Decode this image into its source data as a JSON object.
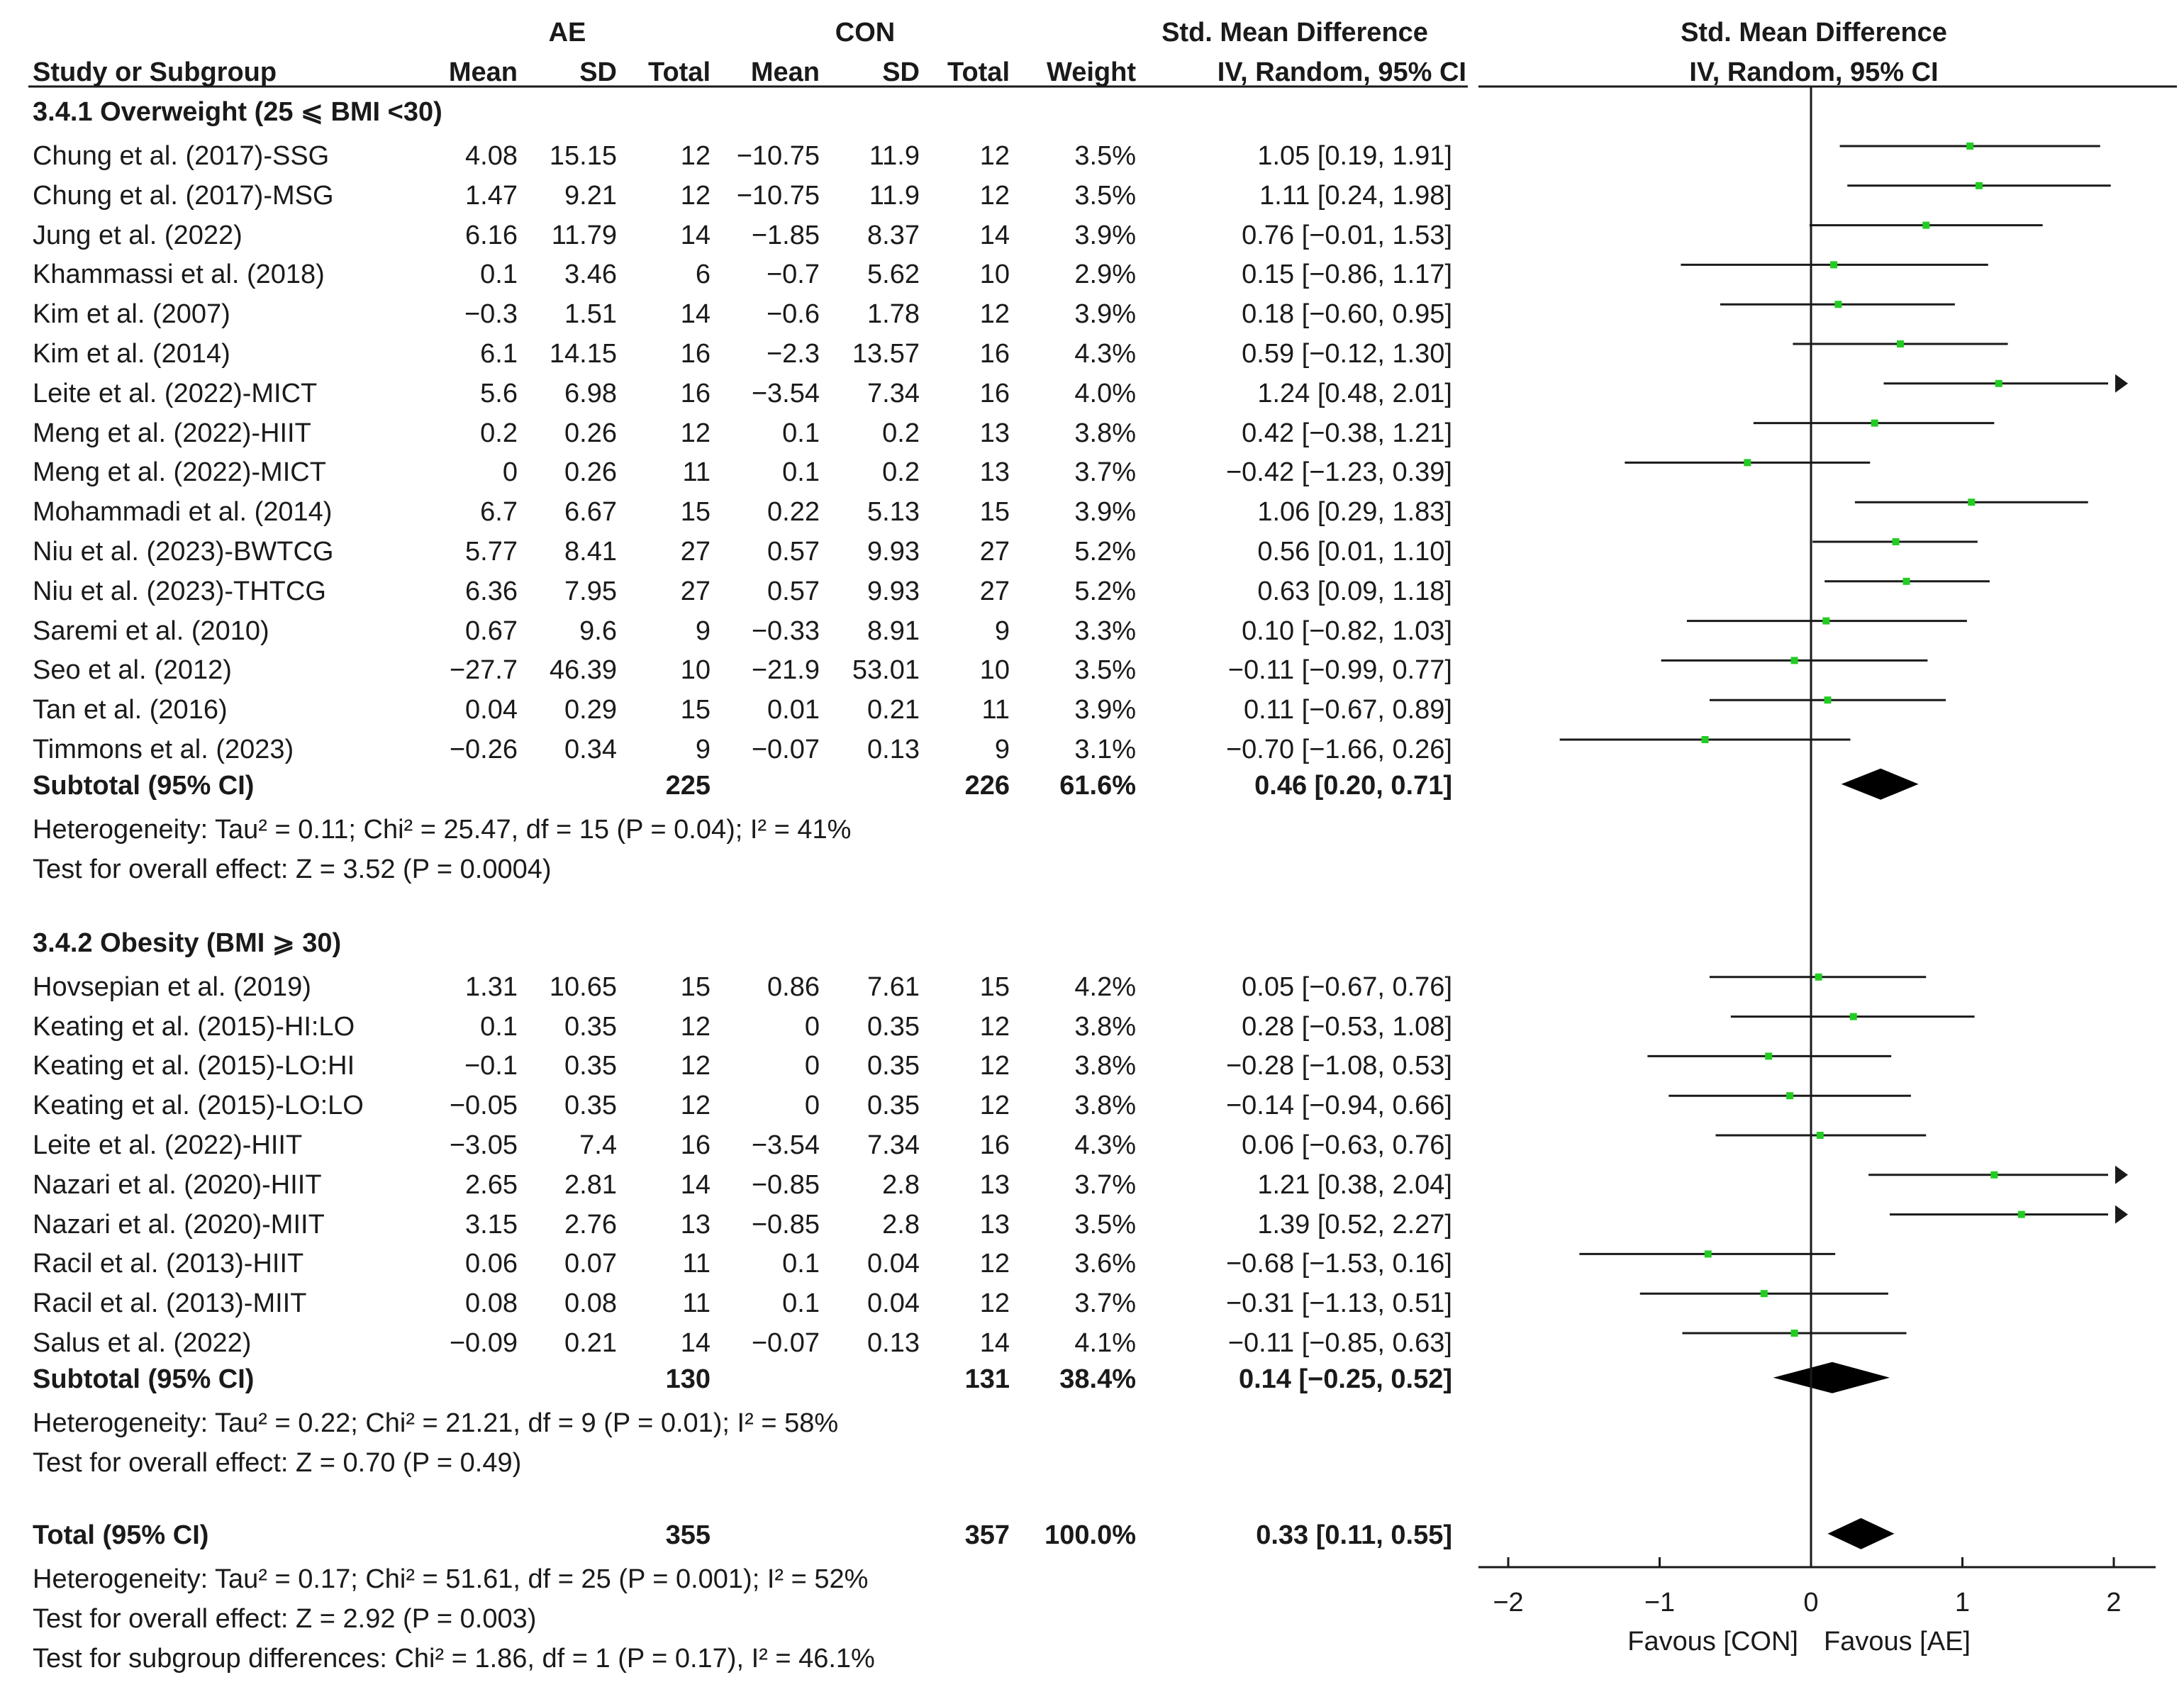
{
  "chart_data": {
    "type": "forest",
    "header": {
      "group_ae": "AE",
      "group_con": "CON",
      "smd_title": "Std. Mean Difference",
      "plot_title": "Std. Mean Difference",
      "study_col": "Study or Subgroup",
      "mean": "Mean",
      "sd": "SD",
      "total": "Total",
      "weight": "Weight",
      "ci_sub": "IV, Random, 95% CI",
      "plot_sub": "IV, Random, 95% CI"
    },
    "axis": {
      "min": -2,
      "max": 2,
      "ticks": [
        -2,
        -1,
        0,
        1,
        2
      ],
      "tick_labels": [
        "−2",
        "−1",
        "0",
        "1",
        "2"
      ],
      "label_left": "Favous [CON]",
      "label_right": "Favous [AE]"
    },
    "subgroups": [
      {
        "title": "3.4.1 Overweight (25 ⩽ BMI <30)",
        "studies": [
          {
            "name": "Chung et al. (2017)-SSG",
            "ae_mean": "4.08",
            "ae_sd": "15.15",
            "ae_n": "12",
            "con_mean": "−10.75",
            "con_sd": "11.9",
            "con_n": "12",
            "weight": "3.5%",
            "ci_text": "1.05 [0.19, 1.91]",
            "est": 1.05,
            "lo": 0.19,
            "hi": 1.91
          },
          {
            "name": "Chung et al. (2017)-MSG",
            "ae_mean": "1.47",
            "ae_sd": "9.21",
            "ae_n": "12",
            "con_mean": "−10.75",
            "con_sd": "11.9",
            "con_n": "12",
            "weight": "3.5%",
            "ci_text": "1.11 [0.24, 1.98]",
            "est": 1.11,
            "lo": 0.24,
            "hi": 1.98
          },
          {
            "name": "Jung et al. (2022)",
            "ae_mean": "6.16",
            "ae_sd": "11.79",
            "ae_n": "14",
            "con_mean": "−1.85",
            "con_sd": "8.37",
            "con_n": "14",
            "weight": "3.9%",
            "ci_text": "0.76 [−0.01, 1.53]",
            "est": 0.76,
            "lo": -0.01,
            "hi": 1.53
          },
          {
            "name": "Khammassi et al. (2018)",
            "ae_mean": "0.1",
            "ae_sd": "3.46",
            "ae_n": "6",
            "con_mean": "−0.7",
            "con_sd": "5.62",
            "con_n": "10",
            "weight": "2.9%",
            "ci_text": "0.15 [−0.86, 1.17]",
            "est": 0.15,
            "lo": -0.86,
            "hi": 1.17
          },
          {
            "name": "Kim et al. (2007)",
            "ae_mean": "−0.3",
            "ae_sd": "1.51",
            "ae_n": "14",
            "con_mean": "−0.6",
            "con_sd": "1.78",
            "con_n": "12",
            "weight": "3.9%",
            "ci_text": "0.18 [−0.60, 0.95]",
            "est": 0.18,
            "lo": -0.6,
            "hi": 0.95
          },
          {
            "name": "Kim et al. (2014)",
            "ae_mean": "6.1",
            "ae_sd": "14.15",
            "ae_n": "16",
            "con_mean": "−2.3",
            "con_sd": "13.57",
            "con_n": "16",
            "weight": "4.3%",
            "ci_text": "0.59 [−0.12, 1.30]",
            "est": 0.59,
            "lo": -0.12,
            "hi": 1.3
          },
          {
            "name": "Leite et al. (2022)-MICT",
            "ae_mean": "5.6",
            "ae_sd": "6.98",
            "ae_n": "16",
            "con_mean": "−3.54",
            "con_sd": "7.34",
            "con_n": "16",
            "weight": "4.0%",
            "ci_text": "1.24 [0.48, 2.01]",
            "est": 1.24,
            "lo": 0.48,
            "hi": 2.01
          },
          {
            "name": "Meng et al. (2022)-HIIT",
            "ae_mean": "0.2",
            "ae_sd": "0.26",
            "ae_n": "12",
            "con_mean": "0.1",
            "con_sd": "0.2",
            "con_n": "13",
            "weight": "3.8%",
            "ci_text": "0.42 [−0.38, 1.21]",
            "est": 0.42,
            "lo": -0.38,
            "hi": 1.21
          },
          {
            "name": "Meng et al. (2022)-MICT",
            "ae_mean": "0",
            "ae_sd": "0.26",
            "ae_n": "11",
            "con_mean": "0.1",
            "con_sd": "0.2",
            "con_n": "13",
            "weight": "3.7%",
            "ci_text": "−0.42 [−1.23, 0.39]",
            "est": -0.42,
            "lo": -1.23,
            "hi": 0.39
          },
          {
            "name": "Mohammadi et al. (2014)",
            "ae_mean": "6.7",
            "ae_sd": "6.67",
            "ae_n": "15",
            "con_mean": "0.22",
            "con_sd": "5.13",
            "con_n": "15",
            "weight": "3.9%",
            "ci_text": "1.06 [0.29, 1.83]",
            "est": 1.06,
            "lo": 0.29,
            "hi": 1.83
          },
          {
            "name": "Niu et al. (2023)-BWTCG",
            "ae_mean": "5.77",
            "ae_sd": "8.41",
            "ae_n": "27",
            "con_mean": "0.57",
            "con_sd": "9.93",
            "con_n": "27",
            "weight": "5.2%",
            "ci_text": "0.56 [0.01, 1.10]",
            "est": 0.56,
            "lo": 0.01,
            "hi": 1.1
          },
          {
            "name": "Niu et al. (2023)-THTCG",
            "ae_mean": "6.36",
            "ae_sd": "7.95",
            "ae_n": "27",
            "con_mean": "0.57",
            "con_sd": "9.93",
            "con_n": "27",
            "weight": "5.2%",
            "ci_text": "0.63 [0.09, 1.18]",
            "est": 0.63,
            "lo": 0.09,
            "hi": 1.18
          },
          {
            "name": "Saremi et al. (2010)",
            "ae_mean": "0.67",
            "ae_sd": "9.6",
            "ae_n": "9",
            "con_mean": "−0.33",
            "con_sd": "8.91",
            "con_n": "9",
            "weight": "3.3%",
            "ci_text": "0.10 [−0.82, 1.03]",
            "est": 0.1,
            "lo": -0.82,
            "hi": 1.03
          },
          {
            "name": "Seo et al. (2012)",
            "ae_mean": "−27.7",
            "ae_sd": "46.39",
            "ae_n": "10",
            "con_mean": "−21.9",
            "con_sd": "53.01",
            "con_n": "10",
            "weight": "3.5%",
            "ci_text": "−0.11 [−0.99, 0.77]",
            "est": -0.11,
            "lo": -0.99,
            "hi": 0.77
          },
          {
            "name": "Tan et al. (2016)",
            "ae_mean": "0.04",
            "ae_sd": "0.29",
            "ae_n": "15",
            "con_mean": "0.01",
            "con_sd": "0.21",
            "con_n": "11",
            "weight": "3.9%",
            "ci_text": "0.11 [−0.67, 0.89]",
            "est": 0.11,
            "lo": -0.67,
            "hi": 0.89
          },
          {
            "name": "Timmons et al. (2023)",
            "ae_mean": "−0.26",
            "ae_sd": "0.34",
            "ae_n": "9",
            "con_mean": "−0.07",
            "con_sd": "0.13",
            "con_n": "9",
            "weight": "3.1%",
            "ci_text": "−0.70 [−1.66, 0.26]",
            "est": -0.7,
            "lo": -1.66,
            "hi": 0.26
          }
        ],
        "subtotal": {
          "label": "Subtotal (95% CI)",
          "ae_n": "225",
          "con_n": "226",
          "weight": "61.6%",
          "ci_text": "0.46 [0.20, 0.71]",
          "est": 0.46,
          "lo": 0.2,
          "hi": 0.71
        },
        "heterogeneity": "Heterogeneity: Tau² = 0.11; Chi² = 25.47, df = 15 (P = 0.04); I² = 41%",
        "overall_test": "Test for overall effect: Z = 3.52 (P = 0.0004)"
      },
      {
        "title": "3.4.2 Obesity (BMI ⩾ 30)",
        "studies": [
          {
            "name": "Hovsepian et al. (2019)",
            "ae_mean": "1.31",
            "ae_sd": "10.65",
            "ae_n": "15",
            "con_mean": "0.86",
            "con_sd": "7.61",
            "con_n": "15",
            "weight": "4.2%",
            "ci_text": "0.05 [−0.67, 0.76]",
            "est": 0.05,
            "lo": -0.67,
            "hi": 0.76
          },
          {
            "name": "Keating et al. (2015)-HI:LO",
            "ae_mean": "0.1",
            "ae_sd": "0.35",
            "ae_n": "12",
            "con_mean": "0",
            "con_sd": "0.35",
            "con_n": "12",
            "weight": "3.8%",
            "ci_text": "0.28 [−0.53, 1.08]",
            "est": 0.28,
            "lo": -0.53,
            "hi": 1.08
          },
          {
            "name": "Keating et al. (2015)-LO:HI",
            "ae_mean": "−0.1",
            "ae_sd": "0.35",
            "ae_n": "12",
            "con_mean": "0",
            "con_sd": "0.35",
            "con_n": "12",
            "weight": "3.8%",
            "ci_text": "−0.28 [−1.08, 0.53]",
            "est": -0.28,
            "lo": -1.08,
            "hi": 0.53
          },
          {
            "name": "Keating et al. (2015)-LO:LO",
            "ae_mean": "−0.05",
            "ae_sd": "0.35",
            "ae_n": "12",
            "con_mean": "0",
            "con_sd": "0.35",
            "con_n": "12",
            "weight": "3.8%",
            "ci_text": "−0.14 [−0.94, 0.66]",
            "est": -0.14,
            "lo": -0.94,
            "hi": 0.66
          },
          {
            "name": "Leite et al. (2022)-HIIT",
            "ae_mean": "−3.05",
            "ae_sd": "7.4",
            "ae_n": "16",
            "con_mean": "−3.54",
            "con_sd": "7.34",
            "con_n": "16",
            "weight": "4.3%",
            "ci_text": "0.06 [−0.63, 0.76]",
            "est": 0.06,
            "lo": -0.63,
            "hi": 0.76
          },
          {
            "name": "Nazari et al. (2020)-HIIT",
            "ae_mean": "2.65",
            "ae_sd": "2.81",
            "ae_n": "14",
            "con_mean": "−0.85",
            "con_sd": "2.8",
            "con_n": "13",
            "weight": "3.7%",
            "ci_text": "1.21 [0.38, 2.04]",
            "est": 1.21,
            "lo": 0.38,
            "hi": 2.04
          },
          {
            "name": "Nazari et al. (2020)-MIIT",
            "ae_mean": "3.15",
            "ae_sd": "2.76",
            "ae_n": "13",
            "con_mean": "−0.85",
            "con_sd": "2.8",
            "con_n": "13",
            "weight": "3.5%",
            "ci_text": "1.39 [0.52, 2.27]",
            "est": 1.39,
            "lo": 0.52,
            "hi": 2.27
          },
          {
            "name": "Racil et al. (2013)-HIIT",
            "ae_mean": "0.06",
            "ae_sd": "0.07",
            "ae_n": "11",
            "con_mean": "0.1",
            "con_sd": "0.04",
            "con_n": "12",
            "weight": "3.6%",
            "ci_text": "−0.68 [−1.53, 0.16]",
            "est": -0.68,
            "lo": -1.53,
            "hi": 0.16
          },
          {
            "name": "Racil et al. (2013)-MIIT",
            "ae_mean": "0.08",
            "ae_sd": "0.08",
            "ae_n": "11",
            "con_mean": "0.1",
            "con_sd": "0.04",
            "con_n": "12",
            "weight": "3.7%",
            "ci_text": "−0.31 [−1.13, 0.51]",
            "est": -0.31,
            "lo": -1.13,
            "hi": 0.51
          },
          {
            "name": "Salus et al. (2022)",
            "ae_mean": "−0.09",
            "ae_sd": "0.21",
            "ae_n": "14",
            "con_mean": "−0.07",
            "con_sd": "0.13",
            "con_n": "14",
            "weight": "4.1%",
            "ci_text": "−0.11 [−0.85, 0.63]",
            "est": -0.11,
            "lo": -0.85,
            "hi": 0.63
          }
        ],
        "subtotal": {
          "label": "Subtotal (95% CI)",
          "ae_n": "130",
          "con_n": "131",
          "weight": "38.4%",
          "ci_text": "0.14 [−0.25, 0.52]",
          "est": 0.14,
          "lo": -0.25,
          "hi": 0.52
        },
        "heterogeneity": "Heterogeneity: Tau² = 0.22; Chi² = 21.21, df = 9 (P = 0.01); I² = 58%",
        "overall_test": "Test for overall effect: Z = 0.70 (P = 0.49)"
      }
    ],
    "total": {
      "label": "Total (95% CI)",
      "ae_n": "355",
      "con_n": "357",
      "weight": "100.0%",
      "ci_text": "0.33 [0.11, 0.55]",
      "est": 0.33,
      "lo": 0.11,
      "hi": 0.55
    },
    "total_heterogeneity": "Heterogeneity: Tau² = 0.17; Chi² = 51.61, df = 25 (P = 0.001); I² = 52%",
    "total_test": "Test for overall effect: Z = 2.92 (P = 0.003)",
    "subgroup_test": "Test for subgroup differences: Chi² = 1.86, df = 1 (P = 0.17), I² = 46.1%",
    "colors": {
      "point": "#22cc22",
      "line": "#1a1a1a",
      "diamond": "#000000"
    }
  }
}
